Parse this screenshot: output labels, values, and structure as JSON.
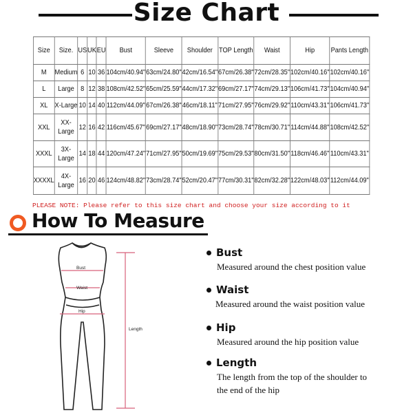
{
  "title": "Size Chart",
  "table": {
    "headers": [
      "Size",
      "Size.",
      "US",
      "UK",
      "EU",
      "Bust",
      "Sleeve",
      "Shoulder",
      "TOP Length",
      "Waist",
      "Hip",
      "Pants Length"
    ],
    "rows": [
      [
        "M",
        "Medium",
        "6",
        "10",
        "36",
        "104cm/40.94\"",
        "63cm/24.80\"",
        "42cm/16.54\"",
        "67cm/26.38\"",
        "72cm/28.35\"",
        "102cm/40.16\"",
        "102cm/40.16\""
      ],
      [
        "L",
        "Large",
        "8",
        "12",
        "38",
        "108cm/42.52\"",
        "65cm/25.59\"",
        "44cm/17.32\"",
        "69cm/27.17\"",
        "74cm/29.13\"",
        "106cm/41.73\"",
        "104cm/40.94\""
      ],
      [
        "XL",
        "X-Large",
        "10",
        "14",
        "40",
        "112cm/44.09\"",
        "67cm/26.38\"",
        "46cm/18.11\"",
        "71cm/27.95\"",
        "76cm/29.92\"",
        "110cm/43.31\"",
        "106cm/41.73\""
      ],
      [
        "XXL",
        "XX-Large",
        "12",
        "16",
        "42",
        "116cm/45.67\"",
        "69cm/27.17\"",
        "48cm/18.90\"",
        "73cm/28.74\"",
        "78cm/30.71\"",
        "114cm/44.88\"",
        "108cm/42.52\""
      ],
      [
        "XXXL",
        "3X-Large",
        "14",
        "18",
        "44",
        "120cm/47.24\"",
        "71cm/27.95\"",
        "50cm/19.69\"",
        "75cm/29.53\"",
        "80cm/31.50\"",
        "118cm/46.46\"",
        "110cm/43.31\""
      ],
      [
        "XXXXL",
        "4X-Large",
        "16",
        "20",
        "46",
        "124cm/48.82\"",
        "73cm/28.74\"",
        "52cm/20.47\"",
        "77cm/30.31\"",
        "82cm/32.28\"",
        "122cm/48.03\"",
        "112cm/44.09\""
      ]
    ]
  },
  "note": "PLEASE NOTE: Please refer to this size chart and choose your size according to it",
  "how_to_measure": {
    "title": "How To Measure",
    "accent_color": "#f05a22",
    "figure_labels": {
      "bust": "Bust",
      "waist": "Waist",
      "hip": "Hip",
      "length": "Length"
    },
    "items": [
      {
        "heading": "Bust",
        "description": "Measured around the chest position value"
      },
      {
        "heading": "Waist",
        "description": "Measured around the waist position value"
      },
      {
        "heading": "Hip",
        "description": "Measured around the  hip position value"
      },
      {
        "heading": "Length",
        "description": "The length from the top of the shoulder to the end of the hip"
      }
    ]
  }
}
